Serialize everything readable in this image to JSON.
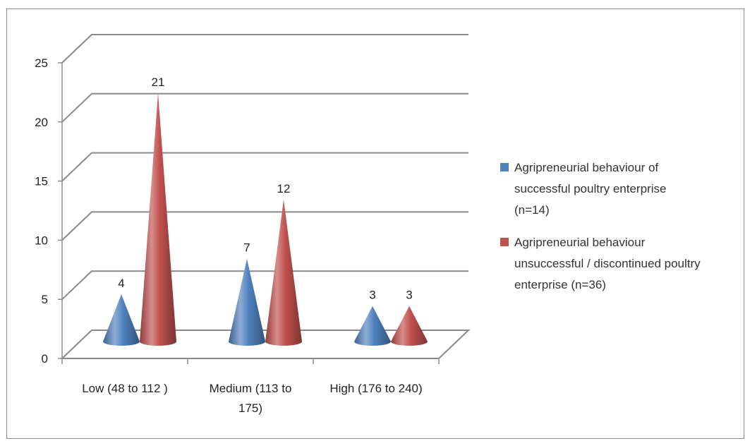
{
  "chart_data": {
    "type": "bar",
    "style": "3d-cone",
    "categories": [
      "Low (48 to 112 )",
      "Medium (113 to 175)",
      "High (176 to 240)"
    ],
    "category_lines": [
      [
        "Low (48 to 112 )"
      ],
      [
        "Medium (113 to",
        "175)"
      ],
      [
        "High (176 to 240)"
      ]
    ],
    "series": [
      {
        "name": "Agripreneurial behaviour of successful poultry enterprise (n=14)",
        "legend_lines": [
          "Agripreneurial behaviour of",
          "successful poultry enterprise",
          "(n=14)"
        ],
        "values": [
          4,
          7,
          3
        ],
        "color": "#4f81bd"
      },
      {
        "name": "Agripreneurial behaviour unsuccessful / discontinued poultry enterprise (n=36)",
        "legend_lines": [
          "Agripreneurial behaviour",
          "unsuccessful / discontinued poultry",
          "enterprise (n=36)"
        ],
        "values": [
          21,
          12,
          3
        ],
        "color": "#c0504d"
      }
    ],
    "ylim": [
      0,
      25
    ],
    "yticks": [
      0,
      5,
      10,
      15,
      20,
      25
    ],
    "data_labels": true,
    "grid": true,
    "legend_position": "right",
    "title": "",
    "xlabel": "",
    "ylabel": ""
  }
}
